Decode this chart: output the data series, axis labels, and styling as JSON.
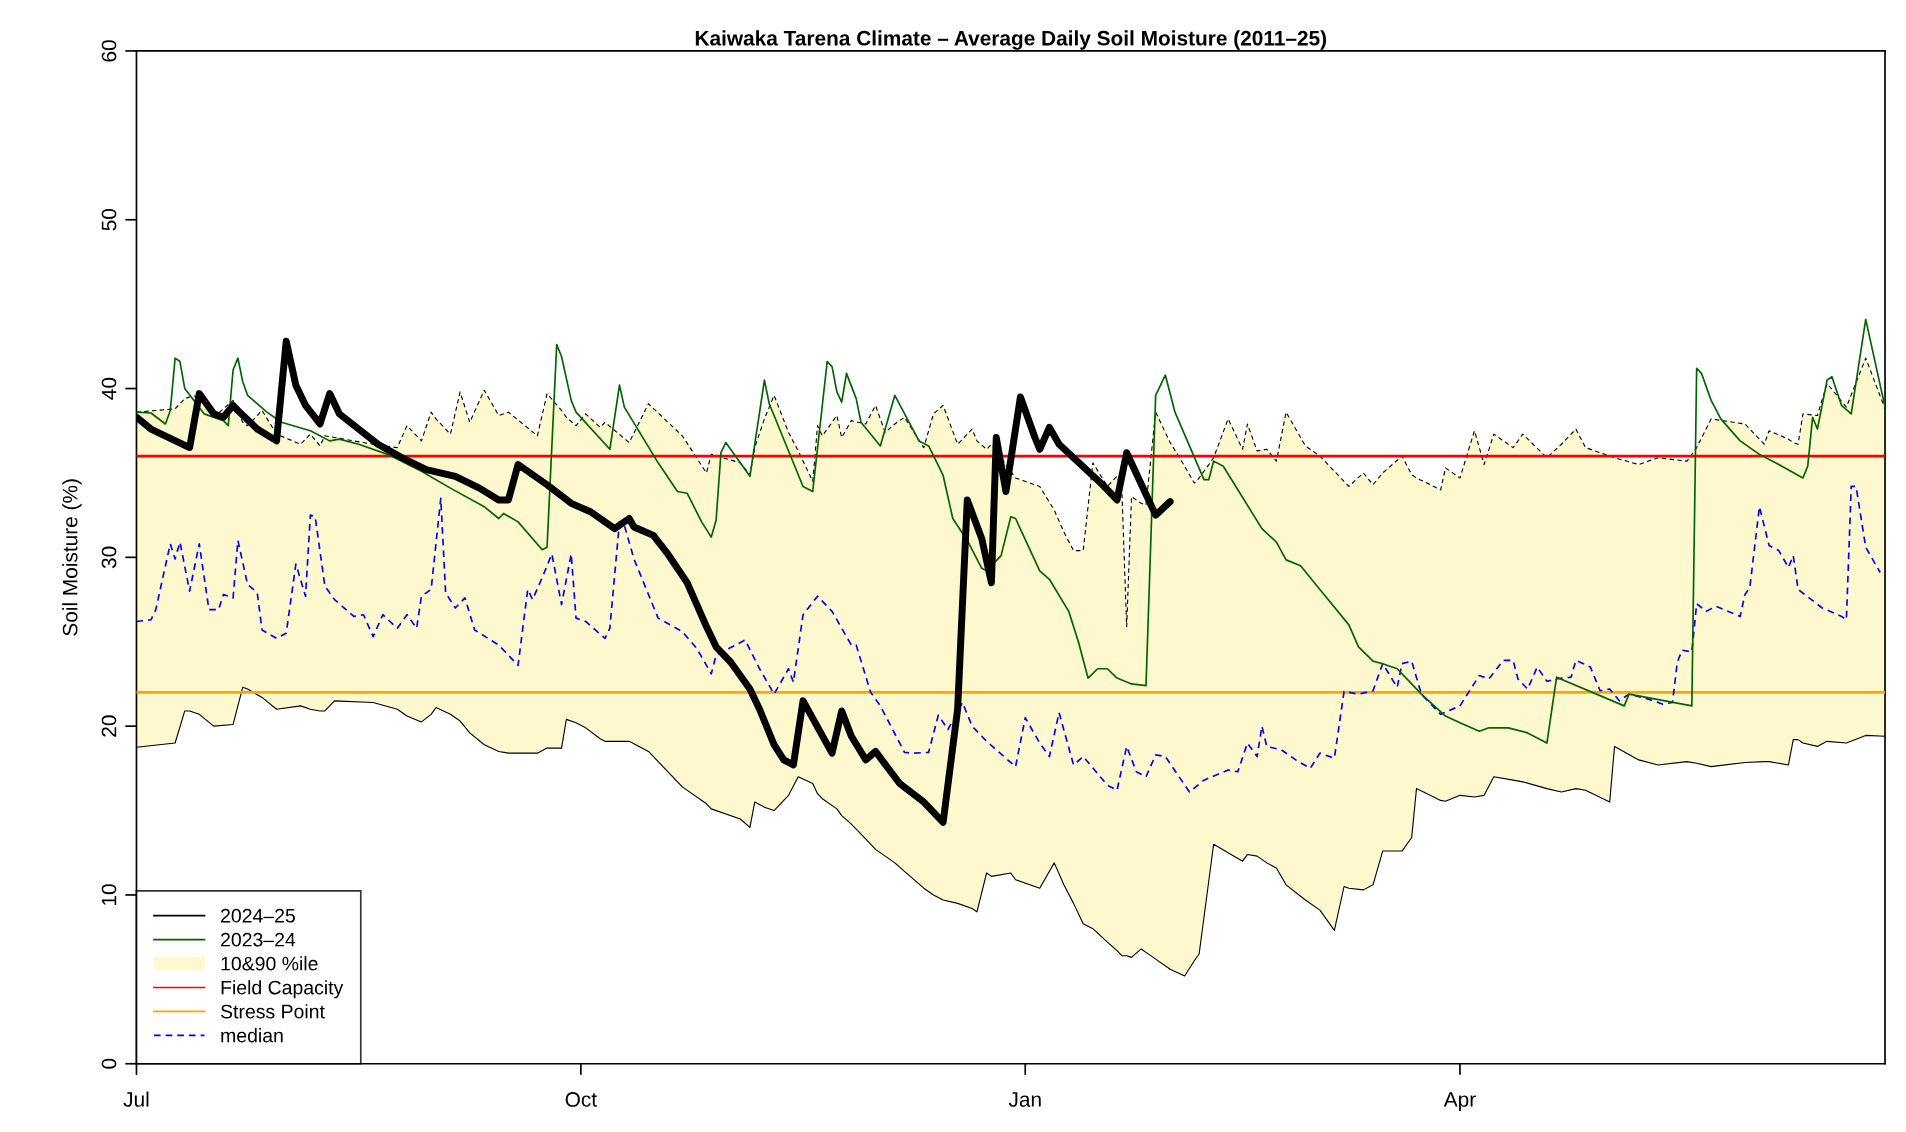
{
  "chart_data": {
    "type": "line",
    "title": "Kaiwaka Tarena Climate – Average Daily Soil Moisture (2011–25)",
    "ylabel": "Soil Moisture (%)",
    "xlim": [
      "2024-07-01",
      "2025-06-28"
    ],
    "ylim": [
      0,
      60
    ],
    "xticks": [
      {
        "value": "2024-07-01",
        "label": "Jul"
      },
      {
        "value": "2024-10-01",
        "label": "Oct"
      },
      {
        "value": "2025-01-01",
        "label": "Jan"
      },
      {
        "value": "2025-04-01",
        "label": "Apr"
      }
    ],
    "yticks": [
      0,
      10,
      20,
      30,
      40,
      50,
      60
    ],
    "grid": false,
    "legend": "bottom left",
    "ref_lines": [
      {
        "axis": "y",
        "value": 36,
        "label": "Field Capacity",
        "color": "#ff0000"
      },
      {
        "axis": "y",
        "value": 22,
        "label": "Stress Point",
        "color": "#ffa500"
      }
    ],
    "series": [
      {
        "name": "2024–25",
        "type": "line",
        "color": "#000000",
        "line_style": "solid",
        "x": [
          "2024-07-01",
          "2024-07-04",
          "2024-07-12",
          "2024-07-14",
          "2024-07-17",
          "2024-07-19",
          "2024-07-21",
          "2024-07-22",
          "2024-07-26",
          "2024-07-30",
          "2024-08-01",
          "2024-08-03",
          "2024-08-05",
          "2024-08-08",
          "2024-08-10",
          "2024-08-12",
          "2024-08-20",
          "2024-08-25",
          "2024-08-30",
          "2024-09-05",
          "2024-09-10",
          "2024-09-14",
          "2024-09-16",
          "2024-09-18",
          "2024-09-24",
          "2024-09-29",
          "2024-10-03",
          "2024-10-08",
          "2024-10-11",
          "2024-10-12",
          "2024-10-16",
          "2024-10-19",
          "2024-10-23",
          "2024-10-27",
          "2024-10-29",
          "2024-11-01",
          "2024-11-05",
          "2024-11-07",
          "2024-11-10",
          "2024-11-12",
          "2024-11-14",
          "2024-11-16",
          "2024-11-22",
          "2024-11-24",
          "2024-11-26",
          "2024-11-29",
          "2024-12-01",
          "2024-12-06",
          "2024-12-11",
          "2024-12-15",
          "2024-12-18",
          "2024-12-20",
          "2024-12-23",
          "2024-12-25",
          "2024-12-26",
          "2024-12-28",
          "2024-12-31",
          "2025-01-03",
          "2025-01-04",
          "2025-01-06",
          "2025-01-08",
          "2025-01-17",
          "2025-01-20",
          "2025-01-22",
          "2025-01-28",
          "2025-01-31"
        ],
        "values": [
          38.3,
          37.6,
          36.5,
          39.7,
          38.5,
          38.3,
          39.0,
          38.7,
          37.6,
          36.9,
          42.8,
          40.2,
          39.0,
          37.9,
          39.7,
          38.5,
          36.7,
          35.9,
          35.2,
          34.8,
          34.1,
          33.4,
          33.4,
          35.5,
          34.3,
          33.2,
          32.7,
          31.7,
          32.3,
          31.8,
          31.3,
          30.2,
          28.5,
          25.9,
          24.7,
          23.8,
          22.2,
          21.0,
          18.9,
          18.0,
          17.7,
          21.5,
          18.4,
          20.9,
          19.4,
          18.0,
          18.5,
          16.6,
          15.5,
          14.3,
          21.0,
          33.4,
          31.1,
          28.5,
          37.1,
          33.9,
          39.5,
          37.1,
          36.4,
          37.7,
          36.7,
          34.3,
          33.4,
          36.2,
          32.5,
          33.3
        ]
      },
      {
        "name": "2023–24",
        "type": "line",
        "color": "#006400",
        "line_style": "solid",
        "x": [
          "2024-07-01",
          "2024-07-04",
          "2024-07-07",
          "2024-07-08",
          "2024-07-09",
          "2024-07-10",
          "2024-07-11",
          "2024-07-15",
          "2024-07-19",
          "2024-07-20",
          "2024-07-21",
          "2024-07-22",
          "2024-07-23",
          "2024-07-24",
          "2024-07-28",
          "2024-07-31",
          "2024-08-06",
          "2024-08-10",
          "2024-08-12",
          "2024-08-16",
          "2024-08-22",
          "2024-08-29",
          "2024-09-04",
          "2024-09-11",
          "2024-09-14",
          "2024-09-15",
          "2024-09-18",
          "2024-09-23",
          "2024-09-24",
          "2024-09-26",
          "2024-09-27",
          "2024-09-29",
          "2024-09-30",
          "2024-10-07",
          "2024-10-09",
          "2024-10-10",
          "2024-10-17",
          "2024-10-21",
          "2024-10-23",
          "2024-10-26",
          "2024-10-28",
          "2024-10-29",
          "2024-10-30",
          "2024-10-31",
          "2024-11-05",
          "2024-11-08",
          "2024-11-09",
          "2024-11-13",
          "2024-11-16",
          "2024-11-18",
          "2024-11-21",
          "2024-11-22",
          "2024-11-23",
          "2024-11-24",
          "2024-11-25",
          "2024-11-27",
          "2024-11-28",
          "2024-12-02",
          "2024-12-05",
          "2024-12-10",
          "2024-12-12",
          "2024-12-15",
          "2024-12-17",
          "2024-12-20",
          "2024-12-23",
          "2024-12-24",
          "2024-12-27",
          "2024-12-29",
          "2024-12-30",
          "2025-01-04",
          "2025-01-06",
          "2025-01-10",
          "2025-01-12",
          "2025-01-14",
          "2025-01-16",
          "2025-01-18",
          "2025-01-20",
          "2025-01-23",
          "2025-01-26",
          "2025-01-28",
          "2025-01-30",
          "2025-02-01",
          "2025-02-07",
          "2025-02-08",
          "2025-02-09",
          "2025-02-11",
          "2025-02-19",
          "2025-02-22",
          "2025-02-24",
          "2025-02-27",
          "2025-03-03",
          "2025-03-09",
          "2025-03-11",
          "2025-03-14",
          "2025-03-16",
          "2025-03-19",
          "2025-03-22",
          "2025-03-24",
          "2025-03-29",
          "2025-04-01",
          "2025-04-05",
          "2025-04-07",
          "2025-04-11",
          "2025-04-15",
          "2025-04-19",
          "2025-04-21",
          "2025-05-05",
          "2025-05-06",
          "2025-05-19",
          "2025-05-20",
          "2025-05-21",
          "2025-05-23",
          "2025-05-25",
          "2025-05-29",
          "2025-06-02",
          "2025-06-06",
          "2025-06-11",
          "2025-06-12",
          "2025-06-13",
          "2025-06-14",
          "2025-06-16",
          "2025-06-17",
          "2025-06-19",
          "2025-06-21",
          "2025-06-24",
          "2025-06-28"
        ],
        "values": [
          38.6,
          38.55,
          37.9,
          38.7,
          41.8,
          41.6,
          40.0,
          38.5,
          38.1,
          37.8,
          41.1,
          41.8,
          40.4,
          39.6,
          38.6,
          38.0,
          37.5,
          36.9,
          37.0,
          36.7,
          36.1,
          35.1,
          34.1,
          33.0,
          32.3,
          32.6,
          32.1,
          30.45,
          30.6,
          42.6,
          41.9,
          39.3,
          38.6,
          36.4,
          40.2,
          38.9,
          35.6,
          33.9,
          33.8,
          32.1,
          31.2,
          32.2,
          36.2,
          36.8,
          34.8,
          40.5,
          39.1,
          36.3,
          34.2,
          33.9,
          41.6,
          41.3,
          39.8,
          39.2,
          40.9,
          39.4,
          38.0,
          36.6,
          39.6,
          36.9,
          36.6,
          34.85,
          32.3,
          31.0,
          29.35,
          29.2,
          30.1,
          32.4,
          32.3,
          29.2,
          28.7,
          26.8,
          25.0,
          22.85,
          23.4,
          23.4,
          22.85,
          22.5,
          22.4,
          39.6,
          40.8,
          38.6,
          34.6,
          34.6,
          35.7,
          35.4,
          31.7,
          30.9,
          29.85,
          29.5,
          28.1,
          26.0,
          24.7,
          23.85,
          23.7,
          23.4,
          22.5,
          21.9,
          20.6,
          20.2,
          19.7,
          19.9,
          19.9,
          19.6,
          19.0,
          22.9,
          21.2,
          21.9,
          21.2,
          41.2,
          40.9,
          39.3,
          38.2,
          36.9,
          36.1,
          35.5,
          34.7,
          35.4,
          38.3,
          37.6,
          40.5,
          40.7,
          39.0,
          38.5,
          44.1,
          38.9
        ]
      },
      {
        "name": "10&90 %ile",
        "type": "area",
        "color": "#fdf8cd",
        "x": [
          "2024-07-01",
          "2024-07-09",
          "2024-07-11",
          "2024-07-12",
          "2024-07-14",
          "2024-07-17",
          "2024-07-21",
          "2024-07-23",
          "2024-07-24",
          "2024-07-27",
          "2024-07-30",
          "2024-08-04",
          "2024-08-06",
          "2024-08-08",
          "2024-08-09",
          "2024-08-11",
          "2024-08-19",
          "2024-08-24",
          "2024-08-26",
          "2024-08-29",
          "2024-08-31",
          "2024-09-01",
          "2024-09-04",
          "2024-09-06",
          "2024-09-08",
          "2024-09-11",
          "2024-09-14",
          "2024-09-16",
          "2024-09-22",
          "2024-09-24",
          "2024-09-27",
          "2024-09-28",
          "2024-09-30",
          "2024-10-02",
          "2024-10-05",
          "2024-10-06",
          "2024-10-11",
          "2024-10-15",
          "2024-10-22",
          "2024-10-27",
          "2024-10-28",
          "2024-11-03",
          "2024-11-05",
          "2024-11-06",
          "2024-11-08",
          "2024-11-10",
          "2024-11-13",
          "2024-11-15",
          "2024-11-18",
          "2024-11-19",
          "2024-11-20",
          "2024-11-23",
          "2024-11-24",
          "2024-11-26",
          "2024-11-29",
          "2024-12-01",
          "2024-12-03",
          "2024-12-05",
          "2024-12-07",
          "2024-12-11",
          "2024-12-13",
          "2024-12-15",
          "2024-12-18",
          "2024-12-21",
          "2024-12-22",
          "2024-12-24",
          "2024-12-25",
          "2024-12-29",
          "2024-12-30",
          "2025-01-04",
          "2025-01-07",
          "2025-01-09",
          "2025-01-11",
          "2025-01-13",
          "2025-01-15",
          "2025-01-18",
          "2025-01-20",
          "2025-01-21",
          "2025-01-22",
          "2025-01-23",
          "2025-01-25",
          "2025-01-26",
          "2025-01-28",
          "2025-01-31",
          "2025-02-03",
          "2025-02-05",
          "2025-02-06",
          "2025-02-09",
          "2025-02-12",
          "2025-02-15",
          "2025-02-16",
          "2025-02-18",
          "2025-02-20",
          "2025-02-22",
          "2025-02-24",
          "2025-02-28",
          "2025-03-03",
          "2025-03-06",
          "2025-03-08",
          "2025-03-09",
          "2025-03-12",
          "2025-03-14",
          "2025-03-16",
          "2025-03-20",
          "2025-03-22",
          "2025-03-23",
          "2025-03-28",
          "2025-03-29",
          "2025-04-01",
          "2025-04-04",
          "2025-04-06",
          "2025-04-08",
          "2025-04-12",
          "2025-04-14",
          "2025-04-19",
          "2025-04-22",
          "2025-04-25",
          "2025-04-27",
          "2025-05-02",
          "2025-05-03",
          "2025-05-08",
          "2025-05-12",
          "2025-05-18",
          "2025-05-20",
          "2025-05-23",
          "2025-05-30",
          "2025-06-03",
          "2025-06-04",
          "2025-06-08",
          "2025-06-09",
          "2025-06-10",
          "2025-06-11",
          "2025-06-14",
          "2025-06-16",
          "2025-06-20",
          "2025-06-24",
          "2025-06-28"
        ],
        "values": [
          38.6,
          38.8,
          39.4,
          39.5,
          39.6,
          38.3,
          39.3,
          38.0,
          37.8,
          38.7,
          37.3,
          36.7,
          37.3,
          36.6,
          37.2,
          37.1,
          36.7,
          36.5,
          37.8,
          36.9,
          38.6,
          38.2,
          37.3,
          39.8,
          38.0,
          39.9,
          38.4,
          38.6,
          37.2,
          39.7,
          38.7,
          38.3,
          37.8,
          38.5,
          37.7,
          38.0,
          36.8,
          39.1,
          37.2,
          35.0,
          36.1,
          35.6,
          34.9,
          36.5,
          38.2,
          39.6,
          37.4,
          36.3,
          34.5,
          37.8,
          37.2,
          38.4,
          37.1,
          38.1,
          37.9,
          39.0,
          37.4,
          37.9,
          38.3,
          36.5,
          38.5,
          39.0,
          36.7,
          37.6,
          36.9,
          36.4,
          36.7,
          35.1,
          34.7,
          34.2,
          32.8,
          31.5,
          30.4,
          30.4,
          35.6,
          34.2,
          34.8,
          34.0,
          25.9,
          33.6,
          33.2,
          33.1,
          38.6,
          36.8,
          35.4,
          34.4,
          34.7,
          35.9,
          38.2,
          36.4,
          37.9,
          36.3,
          36.4,
          35.7,
          38.6,
          36.6,
          36.0,
          35.1,
          34.5,
          34.2,
          35.0,
          34.3,
          35.0,
          36.0,
          34.9,
          34.7,
          34.0,
          35.3,
          34.7,
          37.5,
          35.5,
          37.3,
          36.5,
          37.3,
          35.9,
          36.7,
          37.6,
          36.5,
          36.0,
          35.9,
          35.5,
          35.9,
          35.7,
          36.5,
          38.2,
          37.9,
          36.7,
          37.5,
          37.0,
          36.8,
          36.7,
          38.5,
          38.4,
          40.3,
          38.9,
          41.8,
          38.8
        ]
      },
      {
        "type": "line",
        "color": "#000000",
        "line_style": "solid",
        "x": [
          "2024-07-01",
          "2024-07-09",
          "2024-07-11",
          "2024-07-12",
          "2024-07-14",
          "2024-07-17",
          "2024-07-21",
          "2024-07-23",
          "2024-07-24",
          "2024-07-27",
          "2024-07-30",
          "2024-08-04",
          "2024-08-06",
          "2024-08-08",
          "2024-08-09",
          "2024-08-11",
          "2024-08-19",
          "2024-08-24",
          "2024-08-26",
          "2024-08-29",
          "2024-08-31",
          "2024-09-01",
          "2024-09-04",
          "2024-09-06",
          "2024-09-08",
          "2024-09-11",
          "2024-09-14",
          "2024-09-16",
          "2024-09-22",
          "2024-09-24",
          "2024-09-27",
          "2024-09-28",
          "2024-09-30",
          "2024-10-02",
          "2024-10-05",
          "2024-10-06",
          "2024-10-11",
          "2024-10-15",
          "2024-10-22",
          "2024-10-27",
          "2024-10-28",
          "2024-11-03",
          "2024-11-05",
          "2024-11-06",
          "2024-11-08",
          "2024-11-10",
          "2024-11-13",
          "2024-11-15",
          "2024-11-18",
          "2024-11-19",
          "2024-11-20",
          "2024-11-23",
          "2024-11-24",
          "2024-11-26",
          "2024-11-29",
          "2024-12-01",
          "2024-12-03",
          "2024-12-05",
          "2024-12-07",
          "2024-12-11",
          "2024-12-13",
          "2024-12-15",
          "2024-12-18",
          "2024-12-21",
          "2024-12-22",
          "2024-12-24",
          "2024-12-25",
          "2024-12-29",
          "2024-12-30",
          "2025-01-04",
          "2025-01-07",
          "2025-01-09",
          "2025-01-11",
          "2025-01-13",
          "2025-01-15",
          "2025-01-18",
          "2025-01-20",
          "2025-01-21",
          "2025-01-22",
          "2025-01-23",
          "2025-01-25",
          "2025-01-26",
          "2025-01-28",
          "2025-01-31",
          "2025-02-03",
          "2025-02-05",
          "2025-02-06",
          "2025-02-09",
          "2025-02-12",
          "2025-02-15",
          "2025-02-16",
          "2025-02-18",
          "2025-02-20",
          "2025-02-22",
          "2025-02-24",
          "2025-02-28",
          "2025-03-03",
          "2025-03-06",
          "2025-03-08",
          "2025-03-09",
          "2025-03-12",
          "2025-03-14",
          "2025-03-16",
          "2025-03-20",
          "2025-03-22",
          "2025-03-23",
          "2025-03-28",
          "2025-03-29",
          "2025-04-01",
          "2025-04-04",
          "2025-04-06",
          "2025-04-08",
          "2025-04-12",
          "2025-04-14",
          "2025-04-19",
          "2025-04-22",
          "2025-04-25",
          "2025-04-27",
          "2025-05-02",
          "2025-05-03",
          "2025-05-08",
          "2025-05-12",
          "2025-05-18",
          "2025-05-20",
          "2025-05-23",
          "2025-05-30",
          "2025-06-03",
          "2025-06-04",
          "2025-06-08",
          "2025-06-09",
          "2025-06-10",
          "2025-06-11",
          "2025-06-14",
          "2025-06-16",
          "2025-06-20",
          "2025-06-24",
          "2025-06-28"
        ],
        "values": [
          18.75,
          19.0,
          20.9,
          20.9,
          20.7,
          20.0,
          20.1,
          22.3,
          22.2,
          21.7,
          21.0,
          21.2,
          21.0,
          20.9,
          20.9,
          21.5,
          21.4,
          21.0,
          20.6,
          20.25,
          20.7,
          21.1,
          20.7,
          20.3,
          19.6,
          18.9,
          18.5,
          18.4,
          18.4,
          18.7,
          18.7,
          20.4,
          20.2,
          19.9,
          19.25,
          19.1,
          19.1,
          18.5,
          16.4,
          15.4,
          15.1,
          14.5,
          14.0,
          15.5,
          15.2,
          15.0,
          15.9,
          17.0,
          16.6,
          16.0,
          15.7,
          15.1,
          14.7,
          14.2,
          13.3,
          12.7,
          12.3,
          11.9,
          11.4,
          10.4,
          10.0,
          9.7,
          9.5,
          9.2,
          9.0,
          11.3,
          11.1,
          11.3,
          10.9,
          10.4,
          11.9,
          10.6,
          9.5,
          8.3,
          8.0,
          7.2,
          6.7,
          6.4,
          6.4,
          6.3,
          6.8,
          6.6,
          6.2,
          5.6,
          5.2,
          6.1,
          6.5,
          13.0,
          12.5,
          12.0,
          12.4,
          12.3,
          11.9,
          11.6,
          10.6,
          9.7,
          9.1,
          7.9,
          10.5,
          10.4,
          10.3,
          10.6,
          12.6,
          12.6,
          13.4,
          16.3,
          15.6,
          15.55,
          15.9,
          15.8,
          15.9,
          17.0,
          16.8,
          16.7,
          16.3,
          16.1,
          16.3,
          16.2,
          15.5,
          18.8,
          18.0,
          17.7,
          17.9,
          17.8,
          17.6,
          17.85,
          17.9,
          17.9,
          17.7,
          19.2,
          19.2,
          19.0,
          18.8,
          19.1,
          19.0,
          19.45,
          19.4
        ]
      },
      {
        "name": "median",
        "type": "line",
        "color": "#0000ff",
        "line_style": "dashed",
        "x": [
          "2024-07-01",
          "2024-07-04",
          "2024-07-05",
          "2024-07-08",
          "2024-07-09",
          "2024-07-10",
          "2024-07-12",
          "2024-07-14",
          "2024-07-16",
          "2024-07-18",
          "2024-07-19",
          "2024-07-21",
          "2024-07-22",
          "2024-07-24",
          "2024-07-26",
          "2024-07-27",
          "2024-07-30",
          "2024-08-01",
          "2024-08-03",
          "2024-08-05",
          "2024-08-06",
          "2024-08-07",
          "2024-08-09",
          "2024-08-11",
          "2024-08-15",
          "2024-08-17",
          "2024-08-19",
          "2024-08-21",
          "2024-08-24",
          "2024-08-26",
          "2024-08-28",
          "2024-08-29",
          "2024-08-31",
          "2024-09-02",
          "2024-09-03",
          "2024-09-05",
          "2024-09-07",
          "2024-09-09",
          "2024-09-14",
          "2024-09-18",
          "2024-09-20",
          "2024-09-21",
          "2024-09-23",
          "2024-09-25",
          "2024-09-27",
          "2024-09-29",
          "2024-09-30",
          "2024-10-02",
          "2024-10-06",
          "2024-10-07",
          "2024-10-09",
          "2024-10-10",
          "2024-10-12",
          "2024-10-17",
          "2024-10-22",
          "2024-10-25",
          "2024-10-28",
          "2024-10-29",
          "2024-11-04",
          "2024-11-07",
          "2024-11-10",
          "2024-11-13",
          "2024-11-14",
          "2024-11-16",
          "2024-11-19",
          "2024-11-22",
          "2024-11-26",
          "2024-11-27",
          "2024-11-30",
          "2024-12-02",
          "2024-12-07",
          "2024-12-09",
          "2024-12-12",
          "2024-12-14",
          "2024-12-16",
          "2024-12-19",
          "2024-12-21",
          "2024-12-24",
          "2024-12-28",
          "2024-12-30",
          "2025-01-01",
          "2025-01-04",
          "2025-01-06",
          "2025-01-08",
          "2025-01-11",
          "2025-01-13",
          "2025-01-18",
          "2025-01-20",
          "2025-01-22",
          "2025-01-24",
          "2025-01-26",
          "2025-01-28",
          "2025-01-30",
          "2025-02-04",
          "2025-02-07",
          "2025-02-12",
          "2025-02-14",
          "2025-02-16",
          "2025-02-18",
          "2025-02-19",
          "2025-02-20",
          "2025-02-23",
          "2025-02-26",
          "2025-03-01",
          "2025-03-03",
          "2025-03-06",
          "2025-03-08",
          "2025-03-11",
          "2025-03-14",
          "2025-03-16",
          "2025-03-19",
          "2025-03-20",
          "2025-03-22",
          "2025-03-24",
          "2025-03-28",
          "2025-04-01",
          "2025-04-05",
          "2025-04-07",
          "2025-04-10",
          "2025-04-12",
          "2025-04-13",
          "2025-04-15",
          "2025-04-17",
          "2025-04-19",
          "2025-04-21",
          "2025-04-24",
          "2025-04-25",
          "2025-04-28",
          "2025-04-30",
          "2025-05-02",
          "2025-05-04",
          "2025-05-06",
          "2025-05-10",
          "2025-05-13",
          "2025-05-15",
          "2025-05-16",
          "2025-05-17",
          "2025-05-19",
          "2025-05-20",
          "2025-05-22",
          "2025-05-24",
          "2025-05-29",
          "2025-05-30",
          "2025-05-31",
          "2025-06-02",
          "2025-06-04",
          "2025-06-06",
          "2025-06-08",
          "2025-06-09",
          "2025-06-10",
          "2025-06-15",
          "2025-06-19",
          "2025-06-20",
          "2025-06-21",
          "2025-06-22",
          "2025-06-24",
          "2025-06-27"
        ],
        "values": [
          26.2,
          26.3,
          26.9,
          30.8,
          29.9,
          30.9,
          28.0,
          30.8,
          26.9,
          26.9,
          27.8,
          27.6,
          31.0,
          28.4,
          27.9,
          25.7,
          25.2,
          25.5,
          29.6,
          27.7,
          32.5,
          32.4,
          28.3,
          27.5,
          26.5,
          26.6,
          25.3,
          26.6,
          25.8,
          26.6,
          25.8,
          27.7,
          28.1,
          33.5,
          27.9,
          27.0,
          27.6,
          25.7,
          24.8,
          23.6,
          28.1,
          27.5,
          28.8,
          30.2,
          27.2,
          30.2,
          26.4,
          26.2,
          25.2,
          25.8,
          32.1,
          31.9,
          29.9,
          26.4,
          25.6,
          24.6,
          23.1,
          24.2,
          25.1,
          23.4,
          21.9,
          23.4,
          22.6,
          26.6,
          27.7,
          26.8,
          24.8,
          24.8,
          22.0,
          21.2,
          18.45,
          18.4,
          18.45,
          20.65,
          19.8,
          21.4,
          20.0,
          19.1,
          18.1,
          17.6,
          20.5,
          19.0,
          18.2,
          20.8,
          17.7,
          18.2,
          16.5,
          16.2,
          18.8,
          17.3,
          17.0,
          18.3,
          18.2,
          16.1,
          16.8,
          17.4,
          17.3,
          19.0,
          18.2,
          20.0,
          18.8,
          18.6,
          18.0,
          17.5,
          18.4,
          18.1,
          22.05,
          21.9,
          22.1,
          23.7,
          22.3,
          23.7,
          23.85,
          21.9,
          20.7,
          21.2,
          23.0,
          22.8,
          23.9,
          23.9,
          22.8,
          22.2,
          23.5,
          22.65,
          22.8,
          22.9,
          23.9,
          23.5,
          22.1,
          22.2,
          21.5,
          21.9,
          21.6,
          21.3,
          21.4,
          23.8,
          24.5,
          24.4,
          27.25,
          26.8,
          27.1,
          26.5,
          27.8,
          28.2,
          33.0,
          30.7,
          30.4,
          29.4,
          30.1,
          28.1,
          27.0,
          26.5,
          26.3,
          34.2,
          34.2,
          30.6,
          29.1
        ]
      }
    ]
  }
}
